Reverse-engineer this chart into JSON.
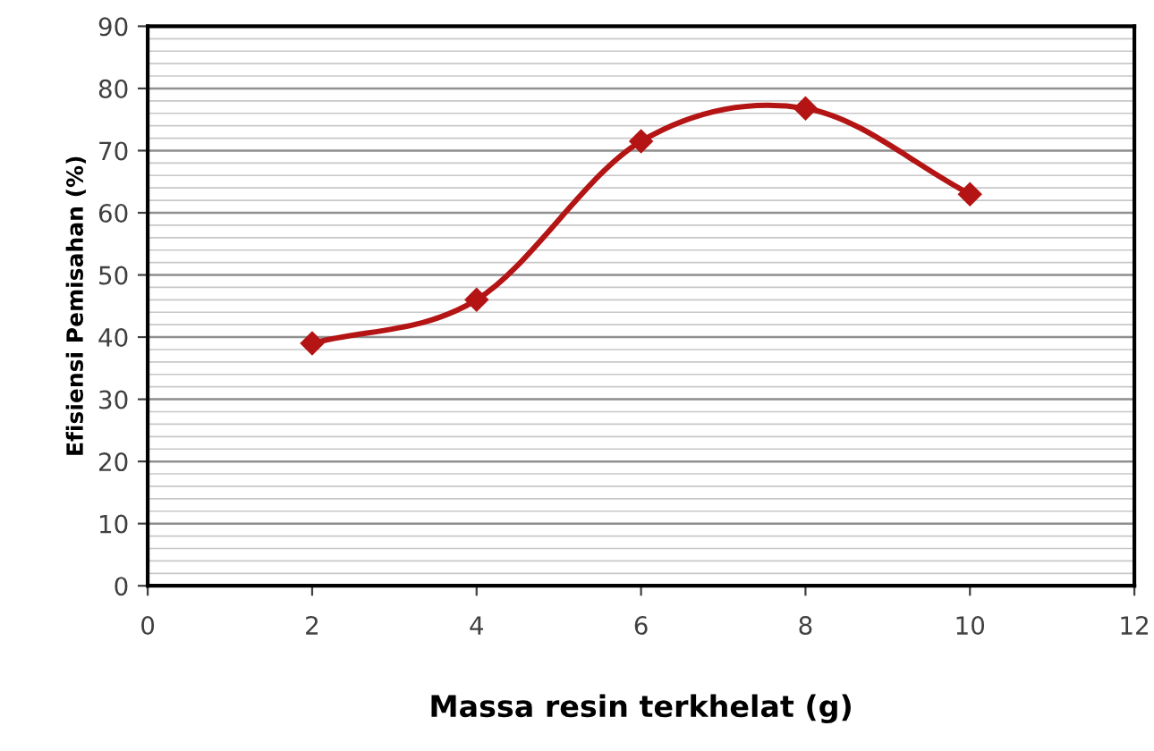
{
  "chart_data": {
    "type": "line",
    "xlabel": "Massa resin terkhelat (g)",
    "ylabel": "Efisiensi Pemisahan (%)",
    "x": [
      2,
      4,
      6,
      8,
      10
    ],
    "series": [
      {
        "color": "#b41414",
        "values": [
          39,
          46,
          71.5,
          76.8,
          63
        ]
      }
    ],
    "xlim": [
      0,
      12
    ],
    "xticks": [
      0,
      2,
      4,
      6,
      8,
      10,
      12
    ],
    "ylim": [
      0,
      90
    ],
    "yticks": [
      0,
      10,
      20,
      30,
      40,
      50,
      60,
      70,
      80,
      90
    ],
    "grid": "y",
    "marker": "diamond",
    "line_style": "solid"
  }
}
